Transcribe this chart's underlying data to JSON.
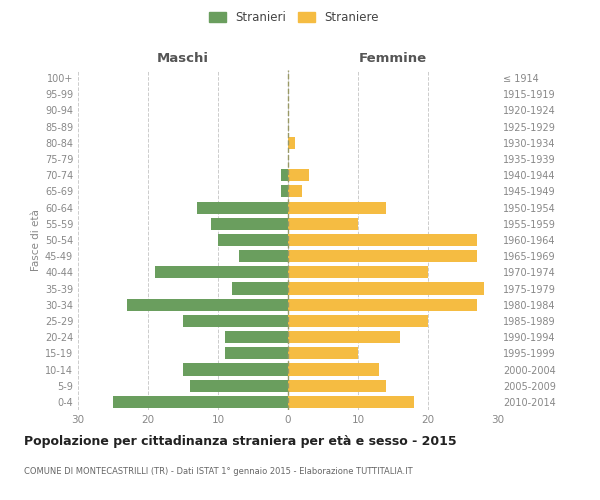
{
  "age_groups": [
    "0-4",
    "5-9",
    "10-14",
    "15-19",
    "20-24",
    "25-29",
    "30-34",
    "35-39",
    "40-44",
    "45-49",
    "50-54",
    "55-59",
    "60-64",
    "65-69",
    "70-74",
    "75-79",
    "80-84",
    "85-89",
    "90-94",
    "95-99",
    "100+"
  ],
  "birth_years": [
    "2010-2014",
    "2005-2009",
    "2000-2004",
    "1995-1999",
    "1990-1994",
    "1985-1989",
    "1980-1984",
    "1975-1979",
    "1970-1974",
    "1965-1969",
    "1960-1964",
    "1955-1959",
    "1950-1954",
    "1945-1949",
    "1940-1944",
    "1935-1939",
    "1930-1934",
    "1925-1929",
    "1920-1924",
    "1915-1919",
    "≤ 1914"
  ],
  "maschi": [
    25,
    14,
    15,
    9,
    9,
    15,
    23,
    8,
    19,
    7,
    10,
    11,
    13,
    1,
    1,
    0,
    0,
    0,
    0,
    0,
    0
  ],
  "femmine": [
    18,
    14,
    13,
    10,
    16,
    20,
    27,
    28,
    20,
    27,
    27,
    10,
    14,
    2,
    3,
    0,
    1,
    0,
    0,
    0,
    0
  ],
  "color_maschi": "#6a9e5e",
  "color_femmine": "#f5bc42",
  "title": "Popolazione per cittadinanza straniera per età e sesso - 2015",
  "subtitle": "COMUNE DI MONTECASTRILLI (TR) - Dati ISTAT 1° gennaio 2015 - Elaborazione TUTTITALIA.IT",
  "ylabel_left": "Fasce di età",
  "xlabel_maschi": "Maschi",
  "xlabel_femmine": "Femmine",
  "legend_maschi": "Stranieri",
  "legend_femmine": "Straniere",
  "xlim": 30,
  "background_color": "#ffffff",
  "grid_color": "#cccccc"
}
